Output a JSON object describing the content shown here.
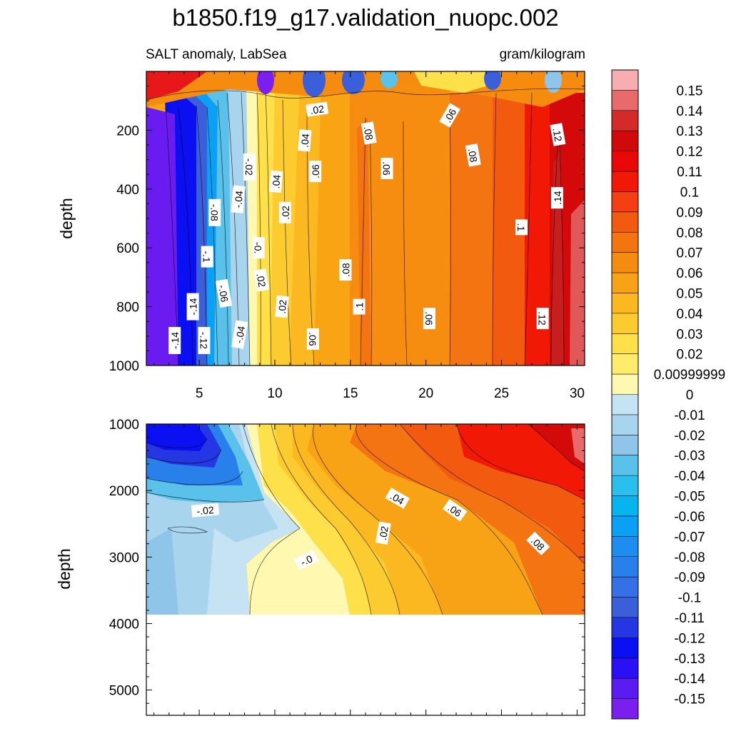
{
  "title": "b1850.f19_g17.validation_nuopc.002",
  "chart_data": {
    "type": "contour",
    "variable": "SALT anomaly, LabSea",
    "units": "gram/kilogram",
    "levels": [
      -0.15,
      -0.14,
      -0.13,
      -0.12,
      -0.11,
      -0.1,
      -0.09,
      -0.08,
      -0.07,
      -0.06,
      -0.05,
      -0.04,
      -0.03,
      -0.02,
      -0.01,
      0,
      0.01,
      0.02,
      0.03,
      0.04,
      0.05,
      0.06,
      0.07,
      0.08,
      0.09,
      0.1,
      0.11,
      0.12,
      0.13,
      0.14,
      0.15
    ],
    "colorbar": {
      "labels": [
        "0.15",
        "0.14",
        "0.13",
        "0.12",
        "0.11",
        "0.1",
        "0.09",
        "0.08",
        "0.07",
        "0.06",
        "0.05",
        "0.04",
        "0.03",
        "0.02",
        "0.00999999",
        "0",
        "-0.01",
        "-0.02",
        "-0.03",
        "-0.04",
        "-0.05",
        "-0.06",
        "-0.07",
        "-0.08",
        "-0.09",
        "-0.1",
        "-0.11",
        "-0.12",
        "-0.13",
        "-0.14",
        "-0.15"
      ],
      "colors": [
        "#7b1fef",
        "#5a1cf0",
        "#2c10f5",
        "#0a10f2",
        "#2537e3",
        "#3a5fd9",
        "#3670e6",
        "#2a80ea",
        "#1d8df0",
        "#0aa0f5",
        "#06b4f0",
        "#2bbfee",
        "#5ac2ea",
        "#8ec5e8",
        "#a9d4ee",
        "#c5e3f3",
        "#fff8b0",
        "#ffec6a",
        "#fde04a",
        "#fccb30",
        "#fbb820",
        "#f8a216",
        "#f58c10",
        "#f47510",
        "#f25a10",
        "#f53e12",
        "#f21806",
        "#e80808",
        "#d00a0a",
        "#d42a2a",
        "#e86a6a",
        "#f8aeb0"
      ]
    },
    "x_ticks": [
      "5",
      "10",
      "15",
      "20",
      "25",
      "30"
    ],
    "x_range": [
      1.5,
      30.5
    ],
    "panels": [
      {
        "name": "upper",
        "ylabel": "depth",
        "y_range": [
          0,
          1000
        ],
        "y_ticks": [
          "200",
          "400",
          "600",
          "800",
          "1000"
        ],
        "contour_labels": [
          {
            "text": ".02",
            "x": 12.8,
            "y": 130,
            "rot": -8
          },
          {
            "text": ".06",
            "x": 21.6,
            "y": 150,
            "rot": -60
          },
          {
            "text": ".08",
            "x": 16.2,
            "y": 210,
            "rot": 80
          },
          {
            "text": ".12",
            "x": 28.7,
            "y": 215,
            "rot": 80
          },
          {
            "text": ".04",
            "x": 12.0,
            "y": 235,
            "rot": -85
          },
          {
            "text": ".08",
            "x": 23.1,
            "y": 285,
            "rot": 80
          },
          {
            "text": "-.02",
            "x": 8.3,
            "y": 325,
            "rot": 90
          },
          {
            "text": ".06",
            "x": 12.7,
            "y": 340,
            "rot": -90
          },
          {
            "text": ".06",
            "x": 17.4,
            "y": 330,
            "rot": 90
          },
          {
            "text": ".04",
            "x": 10.1,
            "y": 375,
            "rot": -85
          },
          {
            "text": "-.04",
            "x": 7.6,
            "y": 435,
            "rot": -85
          },
          {
            "text": ".14",
            "x": 28.7,
            "y": 430,
            "rot": -90
          },
          {
            "text": "-.08",
            "x": 6.0,
            "y": 480,
            "rot": 90
          },
          {
            "text": ".02",
            "x": 10.7,
            "y": 480,
            "rot": -90
          },
          {
            "text": ".1",
            "x": 26.3,
            "y": 530,
            "rot": 90
          },
          {
            "text": "-0.",
            "x": 8.9,
            "y": 600,
            "rot": 90
          },
          {
            "text": "-.1",
            "x": 5.5,
            "y": 630,
            "rot": 90
          },
          {
            "text": ".08",
            "x": 14.7,
            "y": 675,
            "rot": -90
          },
          {
            "text": ".02",
            "x": 9.1,
            "y": 710,
            "rot": 80
          },
          {
            "text": "-.06",
            "x": 6.6,
            "y": 755,
            "rot": 80
          },
          {
            "text": "-.14",
            "x": 4.6,
            "y": 800,
            "rot": -90
          },
          {
            "text": ".02",
            "x": 10.5,
            "y": 800,
            "rot": -85
          },
          {
            "text": ".1",
            "x": 15.6,
            "y": 800,
            "rot": -90
          },
          {
            "text": ".06",
            "x": 20.2,
            "y": 840,
            "rot": 90
          },
          {
            "text": ".12",
            "x": 27.7,
            "y": 840,
            "rot": 90
          },
          {
            "text": "-.04",
            "x": 7.7,
            "y": 895,
            "rot": -80
          },
          {
            "text": "-.14",
            "x": 3.4,
            "y": 915,
            "rot": -90
          },
          {
            "text": "-.12",
            "x": 5.3,
            "y": 915,
            "rot": 90
          },
          {
            "text": ".06",
            "x": 12.5,
            "y": 910,
            "rot": 90
          }
        ]
      },
      {
        "name": "lower",
        "ylabel": "depth",
        "y_range": [
          1000,
          5380
        ],
        "y_ticks": [
          "1000",
          "2000",
          "3000",
          "4000",
          "5000"
        ],
        "contour_labels": [
          {
            "text": "-.02",
            "x": 5.4,
            "y": 2300,
            "rot": -5
          },
          {
            "text": ".04",
            "x": 18.1,
            "y": 2120,
            "rot": 30
          },
          {
            "text": ".06",
            "x": 21.9,
            "y": 2300,
            "rot": 35
          },
          {
            "text": ".02",
            "x": 17.2,
            "y": 2640,
            "rot": -80
          },
          {
            "text": "-.0",
            "x": 12.1,
            "y": 3050,
            "rot": -25
          },
          {
            "text": ".08",
            "x": 27.4,
            "y": 2800,
            "rot": 45
          }
        ]
      }
    ]
  }
}
